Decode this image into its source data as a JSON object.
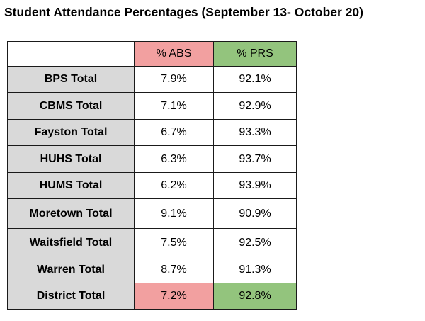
{
  "title": "Student Attendance Percentages (September 13- October 20)",
  "chart_data": {
    "type": "table",
    "columns": [
      "",
      "% ABS",
      "% PRS"
    ],
    "rows": [
      {
        "name": "BPS Total",
        "abs": "7.9%",
        "prs": "92.1%"
      },
      {
        "name": "CBMS Total",
        "abs": "7.1%",
        "prs": "92.9%"
      },
      {
        "name": "Fayston Total",
        "abs": "6.7%",
        "prs": "93.3%"
      },
      {
        "name": "HUHS Total",
        "abs": "6.3%",
        "prs": "93.7%"
      },
      {
        "name": "HUMS Total",
        "abs": "6.2%",
        "prs": "93.9%"
      },
      {
        "name": "Moretown Total",
        "abs": "9.1%",
        "prs": "90.9%"
      },
      {
        "name": "Waitsfield Total",
        "abs": "7.5%",
        "prs": "92.5%"
      },
      {
        "name": "Warren Total",
        "abs": "8.7%",
        "prs": "91.3%"
      },
      {
        "name": "District Total",
        "abs": "7.2%",
        "prs": "92.8%"
      }
    ]
  },
  "colors": {
    "abs_header": "#f2a0a0",
    "prs_header": "#93c47d",
    "name_cell": "#d9d9d9",
    "border": "#1a1a1a"
  }
}
